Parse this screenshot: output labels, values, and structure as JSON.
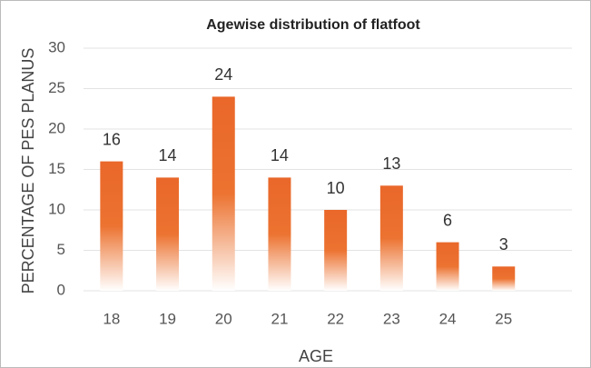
{
  "chart_data": {
    "type": "bar",
    "title": "Agewise distribution of flatfoot",
    "x_label": "AGE",
    "y_label": "PERCENTAGE  OF PES PLANUS",
    "categories": [
      "18",
      "19",
      "20",
      "21",
      "22",
      "23",
      "24",
      "25"
    ],
    "values": [
      16,
      14,
      24,
      14,
      10,
      13,
      6,
      3
    ],
    "color": "#e9672a",
    "ylim": [
      0,
      30
    ],
    "yticks": [
      0,
      5,
      10,
      15,
      20,
      25,
      30
    ],
    "grid": true
  }
}
